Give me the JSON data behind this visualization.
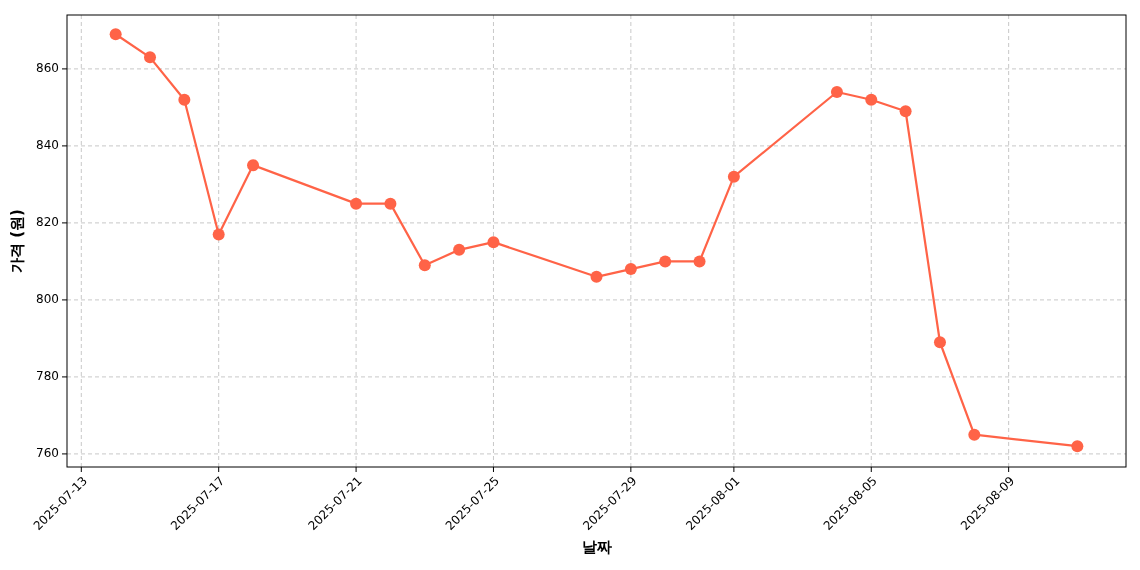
{
  "chart_data": {
    "type": "line",
    "xlabel": "날짜",
    "ylabel": "가격 (원)",
    "x": [
      "2025-07-14",
      "2025-07-15",
      "2025-07-16",
      "2025-07-17",
      "2025-07-18",
      "2025-07-21",
      "2025-07-22",
      "2025-07-23",
      "2025-07-24",
      "2025-07-25",
      "2025-07-28",
      "2025-07-29",
      "2025-07-30",
      "2025-07-31",
      "2025-08-01",
      "2025-08-04",
      "2025-08-05",
      "2025-08-06",
      "2025-08-07",
      "2025-08-08",
      "2025-08-11"
    ],
    "series": [
      {
        "color": "#ff6347",
        "values": [
          869,
          863,
          852,
          817,
          835,
          825,
          825,
          809,
          813,
          815,
          806,
          808,
          810,
          810,
          832,
          854,
          852,
          849,
          789,
          765,
          762
        ]
      }
    ],
    "xlim": [
      "2025-07-12T14:00",
      "2025-08-12T10:00"
    ],
    "xticks": [
      "2025-07-13",
      "2025-07-17",
      "2025-07-21",
      "2025-07-25",
      "2025-07-29",
      "2025-08-01",
      "2025-08-05",
      "2025-08-09"
    ],
    "ylim": [
      756.6,
      874
    ],
    "yticks": [
      760,
      780,
      800,
      820,
      840,
      860
    ],
    "grid": true,
    "marker": "circle",
    "line_style": "solid"
  }
}
